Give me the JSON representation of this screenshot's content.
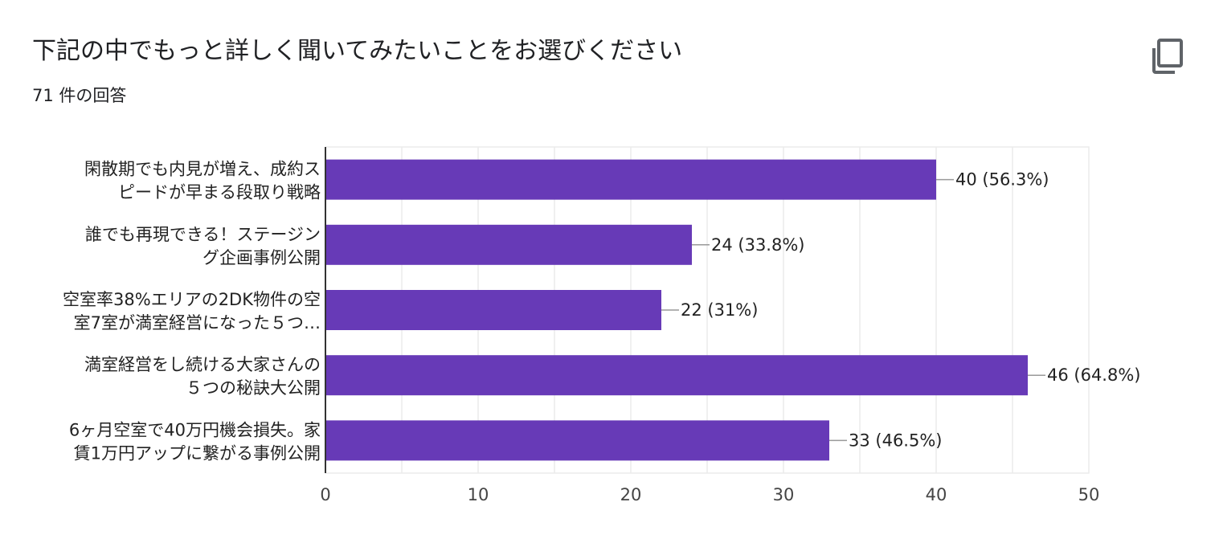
{
  "header": {
    "title": "下記の中でもっと詳しく聞いてみたいことをお選びください",
    "response_count": "71 件の回答",
    "copy_icon": "copy-icon"
  },
  "colors": {
    "bar": "#673ab7",
    "grid": "#ebebeb",
    "axis": "#333333",
    "leader": "#999999"
  },
  "chart_data": {
    "type": "bar",
    "orientation": "horizontal",
    "title": "",
    "xlabel": "",
    "ylabel": "",
    "xlim": [
      0,
      50
    ],
    "x_ticks": [
      0,
      10,
      20,
      30,
      40,
      50
    ],
    "grid": true,
    "categories": [
      [
        "閑散期でも内見が増え、成約ス",
        "ピードが早まる段取り戦略"
      ],
      [
        "誰でも再現できる！ステージン",
        "グ企画事例公開"
      ],
      [
        "空室率38%エリアの2DK物件の空",
        "室7室が満室経営になった５つ…"
      ],
      [
        "満室経営をし続ける大家さんの",
        "５つの秘訣大公開"
      ],
      [
        "6ヶ月空室で40万円機会損失。家",
        "賃1万円アップに繋がる事例公開"
      ]
    ],
    "values": [
      40,
      24,
      22,
      46,
      33
    ],
    "value_labels": [
      "40 (56.3%)",
      "24 (33.8%)",
      "22 (31%)",
      "46 (64.8%)",
      "33 (46.5%)"
    ]
  }
}
